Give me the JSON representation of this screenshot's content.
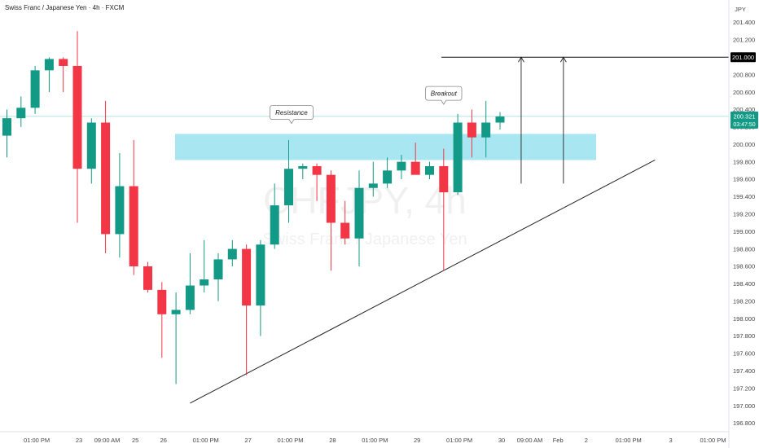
{
  "header": {
    "title": "Swiss Franc / Japanese Yen · 4h · FXCM"
  },
  "watermark": {
    "symbol": "CHFJPY, 4h",
    "name": "Swiss Franc / Japanese Yen"
  },
  "colors": {
    "up": "#129a86",
    "down": "#f23645",
    "zone": "#9fe3ef",
    "price_tag": "#129a86",
    "target_tag": "#000000",
    "trendline": "#222222",
    "current_line": "#7fd3c7"
  },
  "chart_data": {
    "type": "candlestick",
    "instrument": "Swiss Franc / Japanese Yen",
    "timeframe": "4h",
    "currency": "JPY",
    "ylim": [
      196.8,
      201.45
    ],
    "y_ticks": [
      201.4,
      201.2,
      201.0,
      200.8,
      200.6,
      200.4,
      200.2,
      200.0,
      199.8,
      199.6,
      199.4,
      199.2,
      199.0,
      198.8,
      198.6,
      198.4,
      198.2,
      198.0,
      197.8,
      197.6,
      197.4,
      197.2,
      197.0,
      196.8
    ],
    "y_tick_labels": [
      "201.400",
      "201.200",
      "201.000",
      "200.800",
      "200.600",
      "200.400",
      "200.200",
      "200.000",
      "199.800",
      "199.600",
      "199.400",
      "199.200",
      "199.000",
      "198.800",
      "198.600",
      "198.400",
      "198.200",
      "198.000",
      "197.800",
      "197.600",
      "197.400",
      "197.200",
      "197.000",
      "196.800"
    ],
    "x_ticks": [
      {
        "label": "01:00 PM",
        "bar": 2
      },
      {
        "label": "23",
        "bar": 5
      },
      {
        "label": "09:00 AM",
        "bar": 7
      },
      {
        "label": "25",
        "bar": 9
      },
      {
        "label": "26",
        "bar": 11
      },
      {
        "label": "01:00 PM",
        "bar": 14
      },
      {
        "label": "27",
        "bar": 17
      },
      {
        "label": "01:00 PM",
        "bar": 20
      },
      {
        "label": "28",
        "bar": 23
      },
      {
        "label": "01:00 PM",
        "bar": 26
      },
      {
        "label": "29",
        "bar": 29
      },
      {
        "label": "01:00 PM",
        "bar": 32
      },
      {
        "label": "30",
        "bar": 35
      },
      {
        "label": "09:00 AM",
        "bar": 37
      },
      {
        "label": "Feb",
        "bar": 39
      },
      {
        "label": "2",
        "bar": 41
      },
      {
        "label": "01:00 PM",
        "bar": 44
      },
      {
        "label": "3",
        "bar": 47
      },
      {
        "label": "01:00 PM",
        "bar": 50
      }
    ],
    "candles": [
      {
        "o": 200.1,
        "h": 200.4,
        "l": 199.85,
        "c": 200.3
      },
      {
        "o": 200.3,
        "h": 200.55,
        "l": 200.2,
        "c": 200.42
      },
      {
        "o": 200.42,
        "h": 200.9,
        "l": 200.35,
        "c": 200.85
      },
      {
        "o": 200.85,
        "h": 201.0,
        "l": 200.6,
        "c": 200.98
      },
      {
        "o": 200.98,
        "h": 201.0,
        "l": 200.6,
        "c": 200.9
      },
      {
        "o": 200.9,
        "h": 201.3,
        "l": 199.1,
        "c": 199.72
      },
      {
        "o": 199.72,
        "h": 200.3,
        "l": 199.55,
        "c": 200.25
      },
      {
        "o": 200.25,
        "h": 200.5,
        "l": 198.75,
        "c": 198.97
      },
      {
        "o": 198.97,
        "h": 199.9,
        "l": 198.7,
        "c": 199.52
      },
      {
        "o": 199.52,
        "h": 200.05,
        "l": 198.5,
        "c": 198.6
      },
      {
        "o": 198.6,
        "h": 198.65,
        "l": 198.3,
        "c": 198.33
      },
      {
        "o": 198.33,
        "h": 198.42,
        "l": 197.55,
        "c": 198.05
      },
      {
        "o": 198.05,
        "h": 198.3,
        "l": 197.25,
        "c": 198.1
      },
      {
        "o": 198.1,
        "h": 198.75,
        "l": 198.05,
        "c": 198.38
      },
      {
        "o": 198.38,
        "h": 198.9,
        "l": 198.3,
        "c": 198.45
      },
      {
        "o": 198.45,
        "h": 198.75,
        "l": 198.2,
        "c": 198.68
      },
      {
        "o": 198.68,
        "h": 198.9,
        "l": 198.6,
        "c": 198.8
      },
      {
        "o": 198.8,
        "h": 198.85,
        "l": 197.35,
        "c": 198.15
      },
      {
        "o": 198.15,
        "h": 198.9,
        "l": 197.8,
        "c": 198.85
      },
      {
        "o": 198.85,
        "h": 199.55,
        "l": 198.8,
        "c": 199.3
      },
      {
        "o": 199.3,
        "h": 200.05,
        "l": 199.1,
        "c": 199.72
      },
      {
        "o": 199.72,
        "h": 199.78,
        "l": 199.6,
        "c": 199.75
      },
      {
        "o": 199.75,
        "h": 199.78,
        "l": 199.35,
        "c": 199.65
      },
      {
        "o": 199.65,
        "h": 199.7,
        "l": 198.55,
        "c": 199.1
      },
      {
        "o": 199.1,
        "h": 199.35,
        "l": 198.85,
        "c": 198.92
      },
      {
        "o": 198.92,
        "h": 199.7,
        "l": 198.6,
        "c": 199.5
      },
      {
        "o": 199.5,
        "h": 199.8,
        "l": 199.4,
        "c": 199.55
      },
      {
        "o": 199.55,
        "h": 199.85,
        "l": 199.5,
        "c": 199.7
      },
      {
        "o": 199.7,
        "h": 199.88,
        "l": 199.6,
        "c": 199.8
      },
      {
        "o": 199.8,
        "h": 200.02,
        "l": 199.68,
        "c": 199.65
      },
      {
        "o": 199.65,
        "h": 199.8,
        "l": 199.6,
        "c": 199.75
      },
      {
        "o": 199.75,
        "h": 199.95,
        "l": 198.55,
        "c": 199.45
      },
      {
        "o": 199.45,
        "h": 200.35,
        "l": 199.42,
        "c": 200.25
      },
      {
        "o": 200.25,
        "h": 200.4,
        "l": 199.85,
        "c": 200.08
      },
      {
        "o": 200.08,
        "h": 200.5,
        "l": 199.85,
        "c": 200.25
      },
      {
        "o": 200.25,
        "h": 200.37,
        "l": 200.17,
        "c": 200.32
      }
    ],
    "resistance_zone": {
      "from": 199.82,
      "to": 200.12
    },
    "trendline": {
      "from": {
        "bar": 13,
        "price": 197.03
      },
      "to": {
        "bar": 46,
        "price": 199.82
      }
    },
    "target_level": {
      "price": 201.0,
      "label": "201.000"
    },
    "projection_arrows": [
      {
        "bar": 36.5,
        "from": 199.55,
        "to": 201.0
      },
      {
        "bar": 39.5,
        "from": 199.55,
        "to": 201.0
      }
    ],
    "annotations": [
      {
        "text": "Resistance",
        "bar": 20.2,
        "price": 200.23
      },
      {
        "text": "Breakout",
        "bar": 31,
        "price": 200.45
      }
    ],
    "current_price": {
      "price": 200.321,
      "label": "200.321",
      "countdown": "03:47:50"
    }
  }
}
